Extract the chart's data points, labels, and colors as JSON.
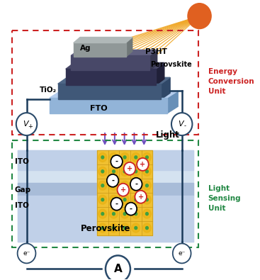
{
  "bg_color": "#ffffff",
  "energy_label": "Energy\nConversion\nUnit",
  "sensing_label": "Light\nSensing\nUnit",
  "fto_label": "FTO",
  "tio2_label": "TiO₂",
  "ag_label": "Ag",
  "p3ht_label": "P3HT",
  "perovskite_label1": "Perovskite",
  "ito_label1": "ITO",
  "gap_label": "Gap",
  "ito_label2": "ITO",
  "perovskite_label2": "Perovskite",
  "light_label": "Light",
  "vplus_label": "V+",
  "vminus_label": "V-",
  "sun_color": "#e06020",
  "ray_color": "#f0a828",
  "arrow_color": "#7050c0",
  "fto_color": "#92b4d8",
  "fto_side_color": "#6890b8",
  "fto_top_color": "#b4ccec",
  "tio2_color": "#405878",
  "tio2_side_color": "#304868",
  "perovskite_color": "#303050",
  "p3ht_color": "#484868",
  "ag_color": "#909898",
  "ag_side_color": "#707878",
  "ito_color": "#c0d0e8",
  "gap_color": "#a8bcd8",
  "perovskite2_color": "#c0d0e8",
  "crystal_color": "#f0c030",
  "crystal_grid_color": "#c89818",
  "wire_color": "#1a3a5a",
  "circle_bg": "#ffffff",
  "circle_edge": "#2a4a6a",
  "red_box_color": "#cc2222",
  "green_box_color": "#228844"
}
